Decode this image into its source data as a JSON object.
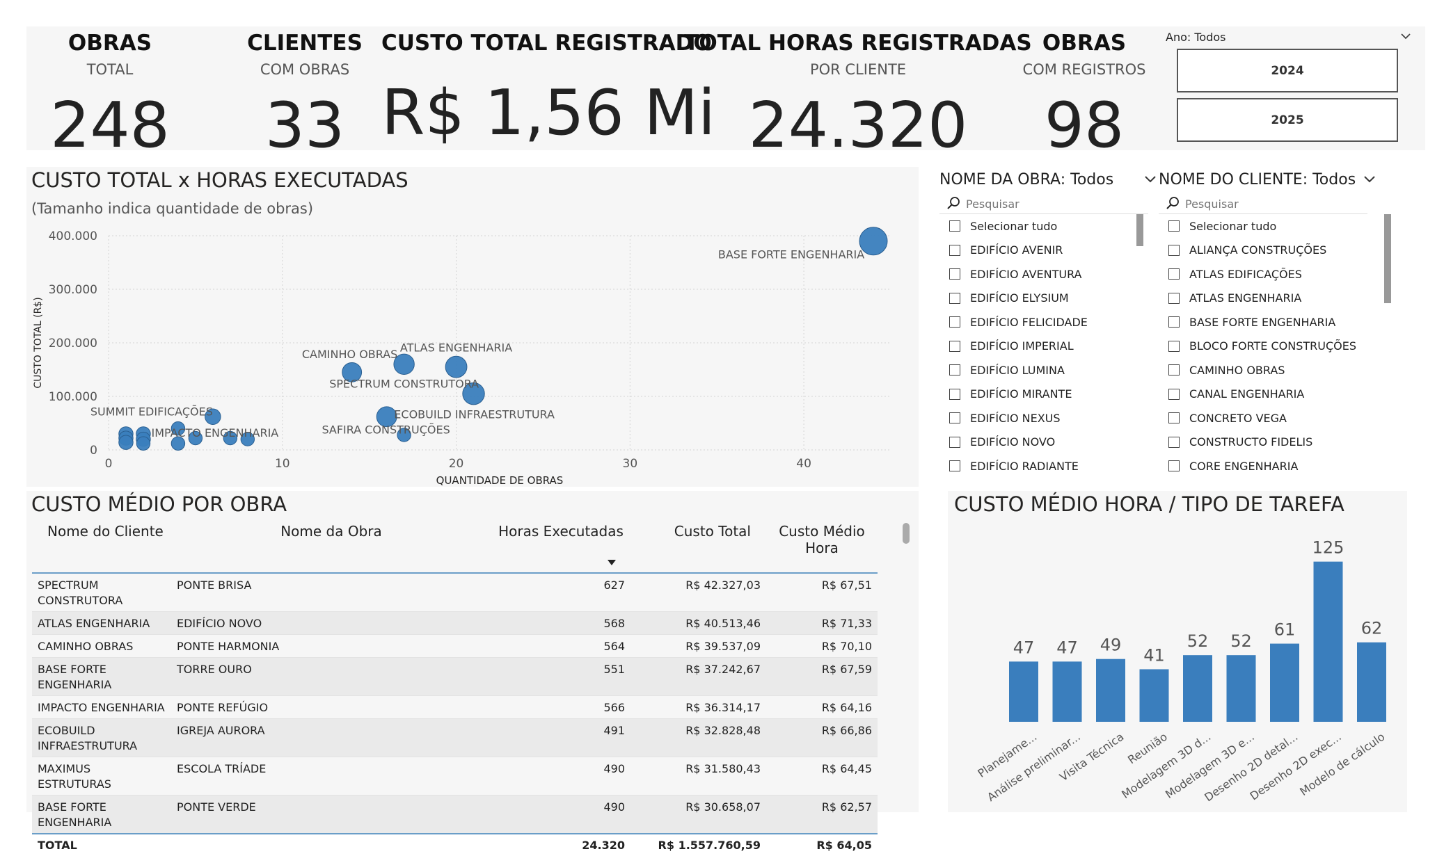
{
  "kpis": [
    {
      "title": "OBRAS",
      "subtitle": "TOTAL",
      "value": "248"
    },
    {
      "title": "CLIENTES",
      "subtitle": "COM OBRAS",
      "value": "33"
    },
    {
      "title": "CUSTO TOTAL REGISTRADO",
      "subtitle": "",
      "value": "R$ 1,56 Mi"
    },
    {
      "title": "TOTAL HORAS REGISTRADAS",
      "subtitle": "POR CLIENTE",
      "value": "24.320"
    },
    {
      "title": "OBRAS",
      "subtitle": "COM REGISTROS",
      "value": "98"
    }
  ],
  "year_filter": {
    "label": "Ano: Todos",
    "options": [
      "2024",
      "2025"
    ]
  },
  "scatter": {
    "title": "CUSTO TOTAL x HORAS EXECUTADAS",
    "subtitle": "(Tamanho indica quantidade de obras)"
  },
  "slicer_obra": {
    "title": "NOME DA OBRA: Todos",
    "search_placeholder": "Pesquisar",
    "items": [
      "Selecionar tudo",
      "EDIFÍCIO AVENIR",
      "EDIFÍCIO AVENTURA",
      "EDIFÍCIO ELYSIUM",
      "EDIFÍCIO FELICIDADE",
      "EDIFÍCIO IMPERIAL",
      "EDIFÍCIO LUMINA",
      "EDIFÍCIO MIRANTE",
      "EDIFÍCIO NEXUS",
      "EDIFÍCIO NOVO",
      "EDIFÍCIO RADIANTE"
    ]
  },
  "slicer_cliente": {
    "title": "NOME DO CLIENTE: Todos",
    "search_placeholder": "Pesquisar",
    "items": [
      "Selecionar tudo",
      "ALIANÇA CONSTRUÇÕES",
      "ATLAS EDIFICAÇÕES",
      "ATLAS ENGENHARIA",
      "BASE FORTE ENGENHARIA",
      "BLOCO FORTE CONSTRUÇÕES",
      "CAMINHO OBRAS",
      "CANAL ENGENHARIA",
      "CONCRETO VEGA",
      "CONSTRUCTO FIDELIS",
      "CORE ENGENHARIA"
    ]
  },
  "table": {
    "title": "CUSTO MÉDIO POR OBRA",
    "columns": [
      "Nome do Cliente",
      "Nome da Obra",
      "Horas Executadas",
      "Custo Total",
      "Custo Médio Hora"
    ],
    "rows": [
      [
        "SPECTRUM CONSTRUTORA",
        "PONTE BRISA",
        "627",
        "R$ 42.327,03",
        "R$ 67,51"
      ],
      [
        "ATLAS ENGENHARIA",
        "EDIFÍCIO NOVO",
        "568",
        "R$ 40.513,46",
        "R$ 71,33"
      ],
      [
        "CAMINHO OBRAS",
        "PONTE HARMONIA",
        "564",
        "R$ 39.537,09",
        "R$ 70,10"
      ],
      [
        "BASE FORTE ENGENHARIA",
        "TORRE OURO",
        "551",
        "R$ 37.242,67",
        "R$ 67,59"
      ],
      [
        "IMPACTO ENGENHARIA",
        "PONTE REFÚGIO",
        "566",
        "R$ 36.314,17",
        "R$ 64,16"
      ],
      [
        "ECOBUILD INFRAESTRUTURA",
        "IGREJA AURORA",
        "491",
        "R$ 32.828,48",
        "R$ 66,86"
      ],
      [
        "MAXIMUS ESTRUTURAS",
        "ESCOLA TRÍADE",
        "490",
        "R$ 31.580,43",
        "R$ 64,45"
      ],
      [
        "BASE FORTE ENGENHARIA",
        "PONTE VERDE",
        "490",
        "R$ 30.658,07",
        "R$ 62,57"
      ]
    ],
    "total": [
      "TOTAL",
      "",
      "24.320",
      "R$ 1.557.760,59",
      "R$ 64,05"
    ]
  },
  "bar": {
    "title": "CUSTO MÉDIO HORA / TIPO DE TAREFA"
  },
  "chart_data": [
    {
      "type": "scatter",
      "title": "CUSTO TOTAL x HORAS EXECUTADAS",
      "subtitle": "(Tamanho indica quantidade de obras)",
      "xlabel": "QUANTIDADE DE OBRAS",
      "ylabel": "CUSTO TOTAL (R$)",
      "xlim": [
        0,
        45
      ],
      "ylim": [
        0,
        400000
      ],
      "x_ticks": [
        0,
        10,
        20,
        30,
        40
      ],
      "y_ticks": [
        0,
        100000,
        200000,
        300000,
        400000
      ],
      "x_tick_labels": [
        "0",
        "10",
        "20",
        "30",
        "40"
      ],
      "y_tick_labels": [
        "0",
        "100.000",
        "200.000",
        "300.000",
        "400.000"
      ],
      "grid": true,
      "points": [
        {
          "x": 44,
          "y": 390000,
          "label": "BASE FORTE ENGENHARIA",
          "size": 44
        },
        {
          "x": 17,
          "y": 160000,
          "label": "CAMINHO OBRAS",
          "size": 17
        },
        {
          "x": 20,
          "y": 155000,
          "label": "ATLAS ENGENHARIA",
          "size": 20
        },
        {
          "x": 14,
          "y": 145000,
          "label": "SPECTRUM CONSTRUTORA",
          "size": 14
        },
        {
          "x": 21,
          "y": 105000,
          "label": "",
          "size": 21
        },
        {
          "x": 16,
          "y": 62000,
          "label": "ECOBUILD INFRAESTRUTURA",
          "size": 16
        },
        {
          "x": 6,
          "y": 62000,
          "label": "SUMMIT EDIFICAÇÕES",
          "size": 6
        },
        {
          "x": 17,
          "y": 28000,
          "label": "SAFIRA CONSTRUÇÕES",
          "size": 3
        },
        {
          "x": 4,
          "y": 40000,
          "label": "",
          "size": 3
        },
        {
          "x": 5,
          "y": 22000,
          "label": "IMPACTO ENGENHARIA",
          "size": 3
        },
        {
          "x": 7,
          "y": 22000,
          "label": "",
          "size": 3
        },
        {
          "x": 8,
          "y": 20000,
          "label": "",
          "size": 3
        },
        {
          "x": 1,
          "y": 30000,
          "label": "",
          "size": 4
        },
        {
          "x": 1,
          "y": 22000,
          "label": "",
          "size": 4
        },
        {
          "x": 1,
          "y": 14000,
          "label": "",
          "size": 4
        },
        {
          "x": 2,
          "y": 30000,
          "label": "",
          "size": 4
        },
        {
          "x": 2,
          "y": 20000,
          "label": "",
          "size": 4
        },
        {
          "x": 2,
          "y": 12000,
          "label": "",
          "size": 3
        },
        {
          "x": 4,
          "y": 12000,
          "label": "",
          "size": 3
        }
      ]
    },
    {
      "type": "bar",
      "title": "CUSTO MÉDIO HORA / TIPO DE TAREFA",
      "categories": [
        "Planejame...",
        "Análise preliminar...",
        "Visita Técnica",
        "Reunião",
        "Modelagem 3D d...",
        "Modelagem 3D e...",
        "Desenho 2D detal...",
        "Desenho 2D exec...",
        "Modelo de cálculo"
      ],
      "values": [
        47,
        47,
        49,
        41,
        52,
        52,
        61,
        125,
        62
      ],
      "ylim": [
        0,
        140
      ],
      "color": "#3a7ebd"
    }
  ]
}
